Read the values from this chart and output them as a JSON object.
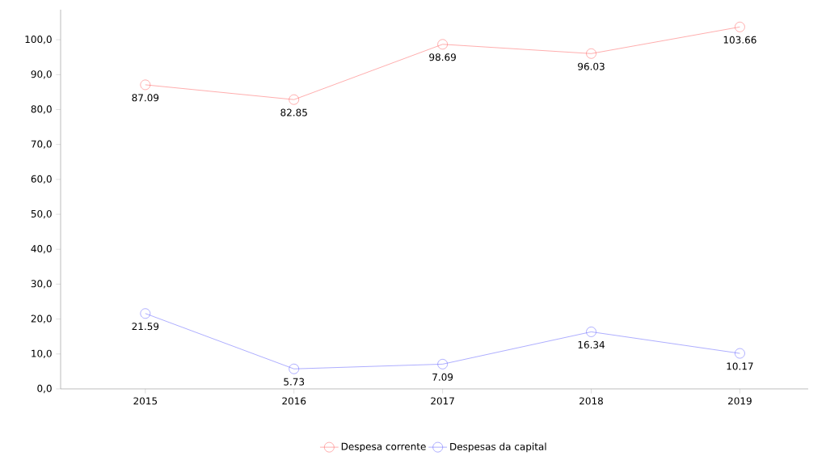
{
  "chart_data": {
    "type": "line",
    "categories": [
      "2015",
      "2016",
      "2017",
      "2018",
      "2019"
    ],
    "series": [
      {
        "name": "Despesa corrente",
        "color": "#ff6666",
        "values": [
          87.09,
          82.85,
          98.69,
          96.03,
          103.66
        ]
      },
      {
        "name": "Despesas da capital",
        "color": "#6666ff",
        "values": [
          21.59,
          5.73,
          7.09,
          16.34,
          10.17
        ]
      }
    ],
    "ylim": [
      0,
      108.6
    ],
    "yticks": [
      {
        "value": 0,
        "label": "0,0"
      },
      {
        "value": 10,
        "label": "10,0"
      },
      {
        "value": 20,
        "label": "20,0"
      },
      {
        "value": 30,
        "label": "30,0"
      },
      {
        "value": 40,
        "label": "40,0"
      },
      {
        "value": 50,
        "label": "50,0"
      },
      {
        "value": 60,
        "label": "60,0"
      },
      {
        "value": 70,
        "label": "70,0"
      },
      {
        "value": 80,
        "label": "80,0"
      },
      {
        "value": 90,
        "label": "90,0"
      },
      {
        "value": 100,
        "label": "100,0"
      }
    ],
    "data_labels": true,
    "legend": "bottom",
    "marker": "circle",
    "line_style": "solid",
    "grid": false
  }
}
